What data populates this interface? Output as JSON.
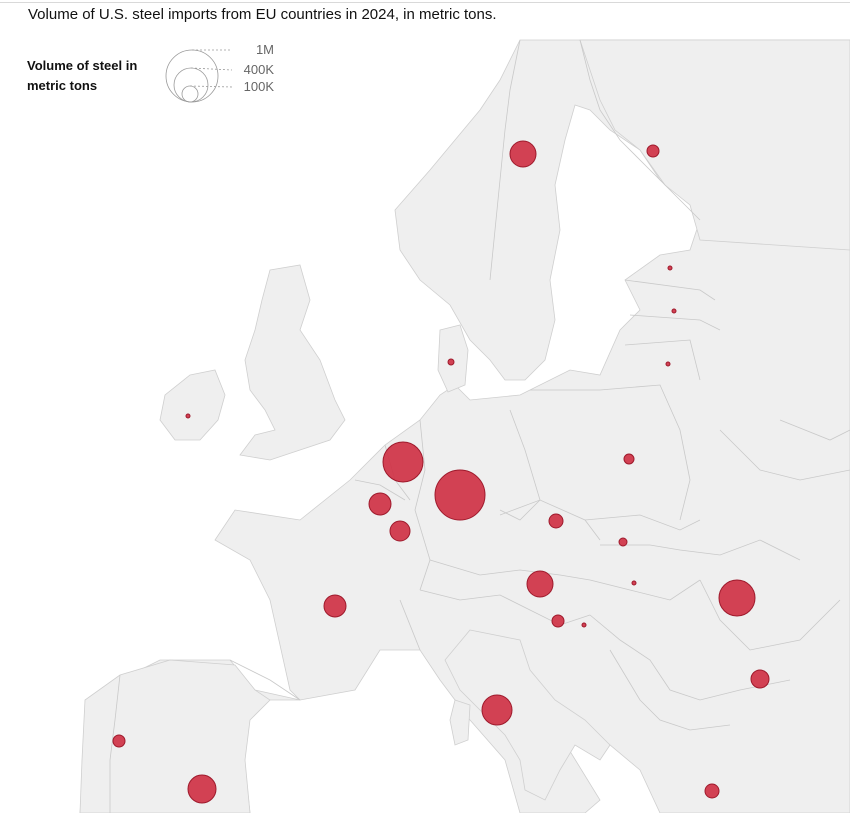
{
  "title": "Volume of U.S. steel imports from EU countries in 2024, in metric tons.",
  "legend": {
    "title": "Volume of steel in metric tons",
    "sizes": [
      {
        "label": "1M",
        "value": 1000000
      },
      {
        "label": "400K",
        "value": 400000
      },
      {
        "label": "100K",
        "value": 100000
      }
    ]
  },
  "colors": {
    "bubble": "#cf3245",
    "land": "#efefef",
    "border": "#cfcfcf"
  },
  "bubbles": [
    {
      "name": "Sweden",
      "r": 13
    },
    {
      "name": "Finland",
      "r": 6
    },
    {
      "name": "Estonia",
      "r": 2
    },
    {
      "name": "Latvia",
      "r": 2
    },
    {
      "name": "Lithuania",
      "r": 2
    },
    {
      "name": "Denmark",
      "r": 3
    },
    {
      "name": "Ireland",
      "r": 2
    },
    {
      "name": "Netherlands",
      "r": 20
    },
    {
      "name": "Belgium",
      "r": 11
    },
    {
      "name": "Luxembourg",
      "r": 10
    },
    {
      "name": "Germany",
      "r": 25
    },
    {
      "name": "Poland",
      "r": 5
    },
    {
      "name": "Czechia",
      "r": 7
    },
    {
      "name": "Slovakia",
      "r": 4
    },
    {
      "name": "Austria",
      "r": 13
    },
    {
      "name": "Hungary",
      "r": 2
    },
    {
      "name": "Slovenia",
      "r": 6
    },
    {
      "name": "Croatia",
      "r": 2
    },
    {
      "name": "Romania",
      "r": 18
    },
    {
      "name": "Bulgaria",
      "r": 9
    },
    {
      "name": "France",
      "r": 11
    },
    {
      "name": "Italy",
      "r": 15
    },
    {
      "name": "Portugal",
      "r": 6
    },
    {
      "name": "Spain",
      "r": 14
    },
    {
      "name": "Greece",
      "r": 7
    }
  ]
}
